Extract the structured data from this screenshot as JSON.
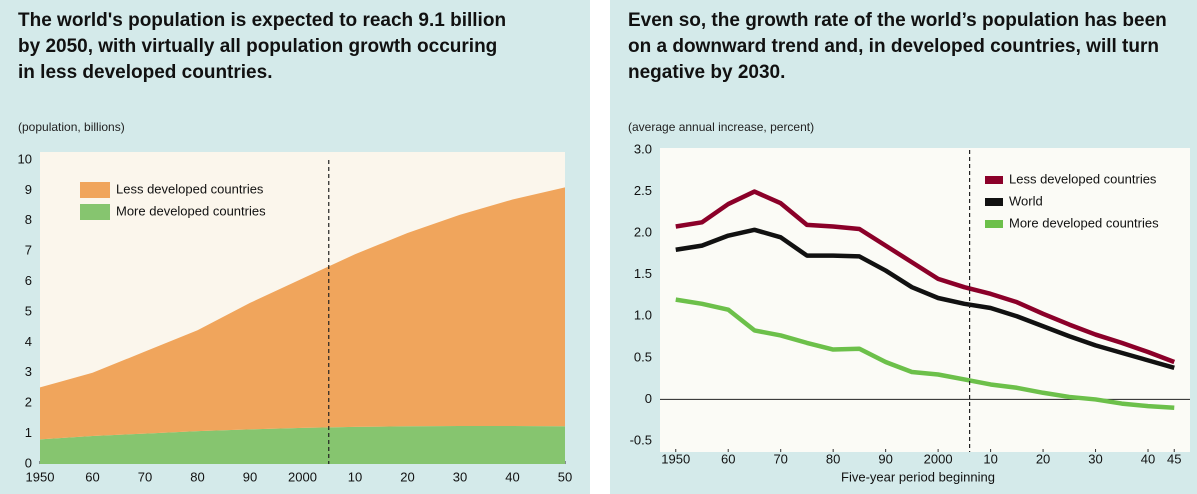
{
  "chart_data": [
    {
      "type": "area",
      "title": "The world's population is expected to reach 9.1 billion by 2050, with virtually all population growth occuring in less developed countries.",
      "subtitle": "(population, billions)",
      "x": [
        1950,
        1960,
        1970,
        1980,
        1990,
        2000,
        2010,
        2020,
        2030,
        2040,
        2050
      ],
      "series": [
        {
          "name": "Less developed countries",
          "color": "#f0a55c",
          "values": [
            1.71,
            2.08,
            2.7,
            3.32,
            4.16,
            4.91,
            5.68,
            6.36,
            6.95,
            7.45,
            7.86
          ]
        },
        {
          "name": "More developed countries",
          "color": "#86c56f",
          "values": [
            0.81,
            0.92,
            1.0,
            1.08,
            1.14,
            1.19,
            1.22,
            1.24,
            1.25,
            1.25,
            1.24
          ]
        }
      ],
      "stacked": true,
      "xlim": [
        1950,
        2050
      ],
      "xticks": [
        1950,
        {
          "value": 1960,
          "label": "60"
        },
        {
          "value": 1970,
          "label": "70"
        },
        {
          "value": 1980,
          "label": "80"
        },
        {
          "value": 1990,
          "label": "90"
        },
        2000,
        {
          "value": 2010,
          "label": "10"
        },
        {
          "value": 2020,
          "label": "20"
        },
        {
          "value": 2030,
          "label": "30"
        },
        {
          "value": 2040,
          "label": "40"
        },
        {
          "value": 2050,
          "label": "50"
        }
      ],
      "ylim": [
        0,
        10
      ],
      "yticks": [
        0,
        1,
        2,
        3,
        4,
        5,
        6,
        7,
        8,
        9,
        10
      ],
      "divider_x": 2005,
      "legend": "upper left"
    },
    {
      "type": "line",
      "title": "Even so, the growth rate of the world’s population has been on a downward trend and, in developed countries, will turn negative by 2030.",
      "subtitle": "(average annual increase, percent)",
      "xlabel": "Five-year period beginning",
      "x": [
        1950,
        1955,
        1960,
        1965,
        1970,
        1975,
        1980,
        1985,
        1990,
        1995,
        2000,
        2005,
        2010,
        2015,
        2020,
        2025,
        2030,
        2035,
        2040,
        2045
      ],
      "series": [
        {
          "name": "Less developed countries",
          "color": "#8b0029",
          "values": [
            2.08,
            2.13,
            2.35,
            2.5,
            2.36,
            2.1,
            2.08,
            2.05,
            1.85,
            1.65,
            1.45,
            1.35,
            1.27,
            1.17,
            1.03,
            0.9,
            0.78,
            0.68,
            0.57,
            0.45
          ]
        },
        {
          "name": "World",
          "color": "#111111",
          "values": [
            1.8,
            1.85,
            1.97,
            2.04,
            1.95,
            1.73,
            1.73,
            1.72,
            1.55,
            1.35,
            1.22,
            1.15,
            1.1,
            1.0,
            0.88,
            0.76,
            0.65,
            0.56,
            0.47,
            0.38
          ]
        },
        {
          "name": "More developed countries",
          "color": "#6cc04a",
          "values": [
            1.2,
            1.15,
            1.08,
            0.83,
            0.77,
            0.68,
            0.6,
            0.61,
            0.45,
            0.33,
            0.3,
            0.24,
            0.18,
            0.14,
            0.08,
            0.03,
            0.0,
            -0.05,
            -0.08,
            -0.1
          ]
        }
      ],
      "xlim": [
        1947,
        2048
      ],
      "xticks": [
        1950,
        {
          "value": 1960,
          "label": "60"
        },
        {
          "value": 1970,
          "label": "70"
        },
        {
          "value": 1980,
          "label": "80"
        },
        {
          "value": 1990,
          "label": "90"
        },
        2000,
        {
          "value": 2010,
          "label": "10"
        },
        {
          "value": 2020,
          "label": "20"
        },
        {
          "value": 2030,
          "label": "30"
        },
        {
          "value": 2040,
          "label": "40"
        },
        {
          "value": 2045,
          "label": "45"
        }
      ],
      "ylim": [
        -0.5,
        3.0
      ],
      "yticks": [
        -0.5,
        0,
        0.5,
        {
          "value": 1,
          "label": "1.0"
        },
        1.5,
        {
          "value": 2,
          "label": "2.0"
        },
        2.5,
        {
          "value": 3,
          "label": "3.0"
        }
      ],
      "divider_x": 2006,
      "legend": "upper right"
    }
  ]
}
